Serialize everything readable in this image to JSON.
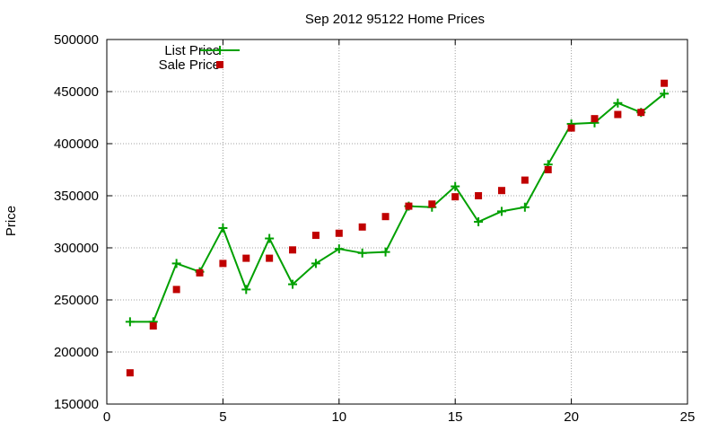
{
  "chart_data": {
    "type": "line",
    "title": "Sep 2012 95122 Home Prices",
    "xlabel": "",
    "ylabel": "Price",
    "xlim": [
      0,
      25
    ],
    "ylim": [
      150000,
      500000
    ],
    "xticks": [
      0,
      5,
      10,
      15,
      20,
      25
    ],
    "yticks": [
      150000,
      200000,
      250000,
      300000,
      350000,
      400000,
      450000,
      500000
    ],
    "grid": true,
    "legend_position": "top-left",
    "series": [
      {
        "name": "List Price",
        "style": "line-with-plus-markers",
        "color": "#00a000",
        "x": [
          1,
          2,
          3,
          4,
          5,
          6,
          7,
          8,
          9,
          10,
          11,
          12,
          13,
          14,
          15,
          16,
          17,
          18,
          19,
          20,
          21,
          22,
          23,
          24
        ],
        "y": [
          229000,
          229000,
          285000,
          277000,
          319000,
          260000,
          309000,
          265000,
          285000,
          299000,
          295000,
          296000,
          340000,
          339000,
          359000,
          325000,
          335000,
          339000,
          380000,
          419000,
          420000,
          439000,
          430000,
          448000
        ]
      },
      {
        "name": "Sale Price",
        "style": "square-markers",
        "color": "#c00000",
        "x": [
          1,
          2,
          3,
          4,
          5,
          6,
          7,
          8,
          9,
          10,
          11,
          12,
          13,
          14,
          15,
          16,
          17,
          18,
          19,
          20,
          21,
          22,
          23,
          24
        ],
        "y": [
          180000,
          225000,
          260000,
          276000,
          285000,
          290000,
          290000,
          298000,
          312000,
          314000,
          320000,
          330000,
          340000,
          342000,
          349000,
          350000,
          355000,
          365000,
          375000,
          415000,
          424000,
          428000,
          430000,
          458000
        ]
      }
    ]
  }
}
